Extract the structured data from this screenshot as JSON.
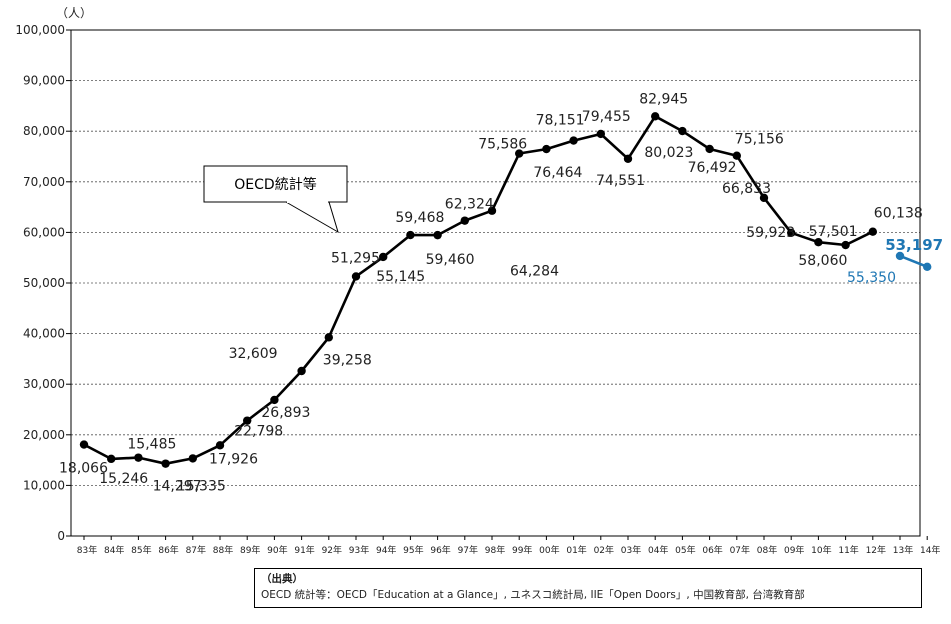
{
  "chart_data": {
    "type": "line",
    "y_unit_label": "（人）",
    "ylim": [
      0,
      100000
    ],
    "y_ticks": [
      "0",
      "10,000",
      "20,000",
      "30,000",
      "40,000",
      "50,000",
      "60,000",
      "70,000",
      "80,000",
      "90,000",
      "100,000"
    ],
    "x_categories": [
      "83年",
      "84年",
      "85年",
      "86年",
      "87年",
      "88年",
      "89年",
      "90年",
      "91年",
      "92年",
      "93年",
      "94年",
      "95年",
      "96年",
      "97年",
      "98年",
      "99年",
      "00年",
      "01年",
      "02年",
      "03年",
      "04年",
      "05年",
      "06年",
      "07年",
      "08年",
      "09年",
      "10年",
      "11年",
      "12年",
      "13年",
      "14年"
    ],
    "grid": true,
    "series": [
      {
        "name": "OECD統計等",
        "color": "#000000",
        "points": [
          {
            "x": "83年",
            "y": 18066,
            "label": "18,066"
          },
          {
            "x": "84年",
            "y": 15246,
            "label": "15,246"
          },
          {
            "x": "85年",
            "y": 15485,
            "label": "15,485"
          },
          {
            "x": "86年",
            "y": 14297,
            "label": "14,297"
          },
          {
            "x": "87年",
            "y": 15335,
            "label": "15,335"
          },
          {
            "x": "88年",
            "y": 17926,
            "label": "17,926"
          },
          {
            "x": "89年",
            "y": 22798,
            "label": "22,798"
          },
          {
            "x": "90年",
            "y": 26893,
            "label": "26,893"
          },
          {
            "x": "91年",
            "y": 32609,
            "label": "32,609"
          },
          {
            "x": "92年",
            "y": 39258,
            "label": "39,258"
          },
          {
            "x": "93年",
            "y": 51295,
            "label": "51,295"
          },
          {
            "x": "94年",
            "y": 55145,
            "label": "55,145"
          },
          {
            "x": "95年",
            "y": 59468,
            "label": "59,468"
          },
          {
            "x": "96年",
            "y": 59460,
            "label": "59,460"
          },
          {
            "x": "97年",
            "y": 62324,
            "label": "62,324"
          },
          {
            "x": "98年",
            "y": 64284,
            "label": "64,284"
          },
          {
            "x": "99年",
            "y": 75586,
            "label": "75,586"
          },
          {
            "x": "00年",
            "y": 76464,
            "label": "76,464"
          },
          {
            "x": "01年",
            "y": 78151,
            "label": "78,151"
          },
          {
            "x": "02年",
            "y": 79455,
            "label": "79,455"
          },
          {
            "x": "03年",
            "y": 74551,
            "label": "74,551"
          },
          {
            "x": "04年",
            "y": 82945,
            "label": "82,945"
          },
          {
            "x": "05年",
            "y": 80023,
            "label": "80,023"
          },
          {
            "x": "06年",
            "y": 76492,
            "label": "76,492"
          },
          {
            "x": "07年",
            "y": 75156,
            "label": "75,156"
          },
          {
            "x": "08年",
            "y": 66833,
            "label": "66,833"
          },
          {
            "x": "09年",
            "y": 59923,
            "label": "59,923"
          },
          {
            "x": "10年",
            "y": 58060,
            "label": "58,060"
          },
          {
            "x": "11年",
            "y": 57501,
            "label": "57,501"
          },
          {
            "x": "12年",
            "y": 60138,
            "label": "60,138"
          }
        ]
      },
      {
        "name": "",
        "color": "#1f77b4",
        "points": [
          {
            "x": "13年",
            "y": 55350,
            "label": "55,350"
          },
          {
            "x": "14年",
            "y": 53197,
            "label": "53,197"
          }
        ]
      }
    ],
    "callout": "OECD統計等"
  },
  "source": {
    "title": "（出典）",
    "text": "OECD 統計等：OECD「Education at a Glance」, ユネスコ統計局, IIE「Open Doors」, 中国教育部, 台湾教育部"
  }
}
